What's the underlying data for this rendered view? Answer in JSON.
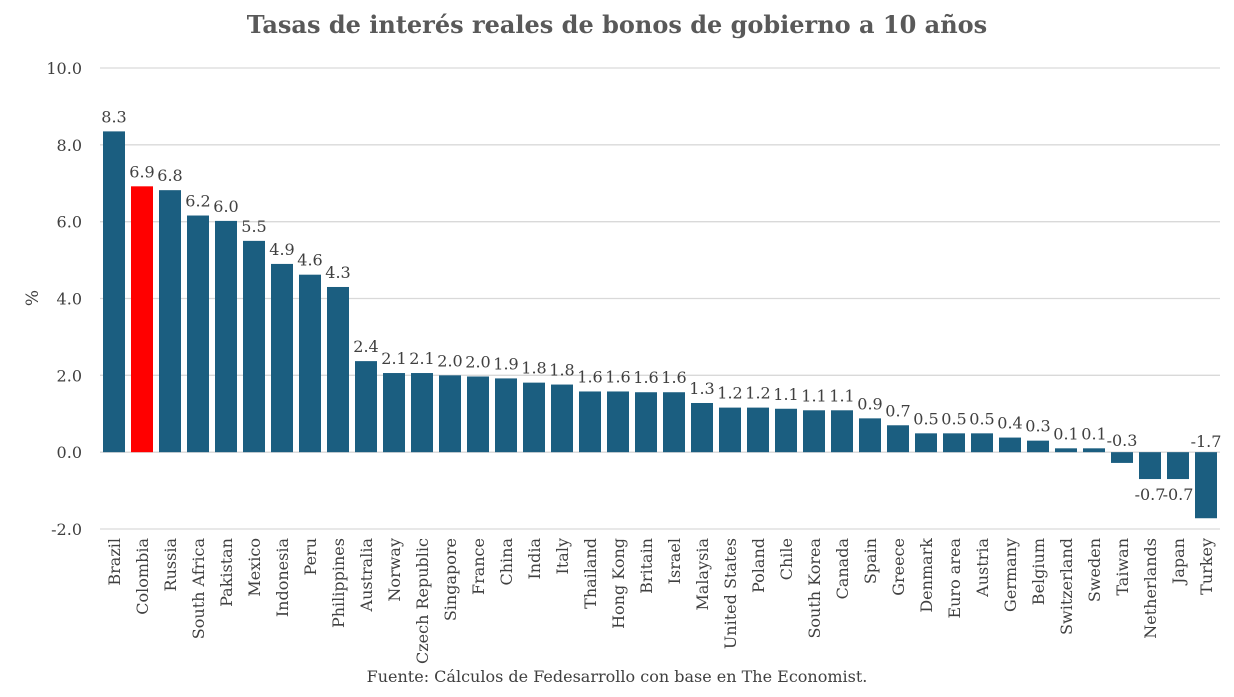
{
  "chart_data": {
    "type": "bar",
    "title": "Tasas de interés reales de bonos de gobierno a 10 años",
    "ylabel": "%",
    "xlabel": "",
    "source": "Fuente: Cálculos de Fedesarrollo con base en The Economist.",
    "ylim": [
      -2.0,
      10.0
    ],
    "yticks": [
      "-2.0",
      "0.0",
      "2.0",
      "4.0",
      "6.0",
      "8.0",
      "10.0"
    ],
    "grid": true,
    "colors": {
      "default": "#1b5e80",
      "highlight": "#ff0000"
    },
    "highlight_category": "Colombia",
    "categories": [
      "Brazil",
      "Colombia",
      "Russia",
      "South Africa",
      "Pakistan",
      "Mexico",
      "Indonesia",
      "Peru",
      "Philippines",
      "Australia",
      "Norway",
      "Czech Republic",
      "Singapore",
      "France",
      "China",
      "India",
      "Italy",
      "Thailand",
      "Hong Kong",
      "Britain",
      "Israel",
      "Malaysia",
      "United States",
      "Poland",
      "Chile",
      "South Korea",
      "Canada",
      "Spain",
      "Greece",
      "Denmark",
      "Euro area",
      "Austria",
      "Germany",
      "Belgium",
      "Switzerland",
      "Sweden",
      "Taiwan",
      "Netherlands",
      "Japan",
      "Turkey"
    ],
    "values": [
      8.35,
      6.92,
      6.82,
      6.16,
      6.02,
      5.5,
      4.9,
      4.62,
      4.3,
      2.37,
      2.06,
      2.06,
      2.0,
      1.97,
      1.92,
      1.81,
      1.76,
      1.58,
      1.58,
      1.56,
      1.56,
      1.28,
      1.16,
      1.16,
      1.13,
      1.09,
      1.09,
      0.88,
      0.7,
      0.49,
      0.49,
      0.49,
      0.38,
      0.3,
      0.1,
      0.1,
      -0.28,
      -0.7,
      -0.7,
      -1.72
    ],
    "labels": [
      "8.3",
      "6.9",
      "6.8",
      "6.2",
      "6.0",
      "5.5",
      "4.9",
      "4.6",
      "4.3",
      "2.4",
      "2.1",
      "2.1",
      "2.0",
      "2.0",
      "1.9",
      "1.8",
      "1.8",
      "1.6",
      "1.6",
      "1.6",
      "1.6",
      "1.3",
      "1.2",
      "1.2",
      "1.1",
      "1.1",
      "1.1",
      "0.9",
      "0.7",
      "0.5",
      "0.5",
      "0.5",
      "0.4",
      "0.3",
      "0.1",
      "0.1",
      "-0.3",
      "-0.7",
      "-0.7",
      "-1.7"
    ]
  }
}
